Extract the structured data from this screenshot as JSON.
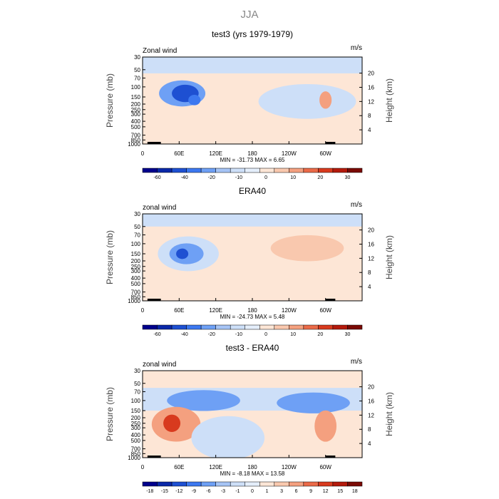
{
  "page_title": "JJA",
  "chart_data": [
    {
      "type": "heatmap",
      "title": "test3 (yrs 1979-1979)",
      "field_label": "Zonal wind",
      "unit_label": "m/s",
      "ylabel": "Pressure (mb)",
      "y2label": "Height (km)",
      "x_ticks": [
        "0",
        "60E",
        "120E",
        "180",
        "120W",
        "60W"
      ],
      "y_ticks": [
        "30",
        "50",
        "70",
        "100",
        "150",
        "200",
        "250",
        "300",
        "400",
        "500",
        "700",
        "850",
        "1000"
      ],
      "y2_ticks": [
        "20",
        "16",
        "12",
        "8",
        "4"
      ],
      "stats_text": "MIN = -31.73  MAX =   6.65",
      "min": -31.73,
      "max": 6.65,
      "colorbar_labels": [
        "-60",
        "-40",
        "-20",
        "-10",
        "0",
        "10",
        "20",
        "30"
      ],
      "colorbar_colors": [
        "#00008c",
        "#0a28a8",
        "#1e50d2",
        "#3c78f0",
        "#6ea0f5",
        "#a6c4f5",
        "#cddff8",
        "#e4eefb",
        "#fde6d6",
        "#f9c8ae",
        "#f4a07f",
        "#ea6a48",
        "#d83a1e",
        "#b41a0c",
        "#7a0a04"
      ],
      "background_color": "#fde6d6",
      "features": [
        {
          "kind": "band",
          "lon_range": [
            0,
            360
          ],
          "p_range": [
            30,
            58
          ],
          "level": "light-blue"
        },
        {
          "kind": "blob",
          "lon": 65,
          "p": 130,
          "rx": 38,
          "rp": 0.15,
          "level": "mid-blue"
        },
        {
          "kind": "blob",
          "lon": 70,
          "p": 130,
          "rx": 22,
          "rp": 0.1,
          "level": "deep-blue"
        },
        {
          "kind": "blob",
          "lon": 85,
          "p": 170,
          "rx": 10,
          "rp": 0.06,
          "level": "strong-blue"
        },
        {
          "kind": "blob",
          "lon": 270,
          "p": 180,
          "rx": 80,
          "rp": 0.2,
          "level": "light-blue"
        },
        {
          "kind": "blob",
          "lon": 300,
          "p": 170,
          "rx": 10,
          "rp": 0.1,
          "level": "orange"
        }
      ]
    },
    {
      "type": "heatmap",
      "title": "ERA40",
      "field_label": "zonal wind",
      "unit_label": "m/s",
      "ylabel": "Pressure (mb)",
      "y2label": "Height (km)",
      "x_ticks": [
        "0",
        "60E",
        "120E",
        "180",
        "120W",
        "60W"
      ],
      "y_ticks": [
        "30",
        "50",
        "70",
        "100",
        "150",
        "200",
        "250",
        "300",
        "400",
        "500",
        "700",
        "850",
        "1000"
      ],
      "y2_ticks": [
        "20",
        "16",
        "12",
        "8",
        "4"
      ],
      "stats_text": "MIN = -24.73  MAX =   5.48",
      "min": -24.73,
      "max": 5.48,
      "colorbar_labels": [
        "-60",
        "-40",
        "-20",
        "-10",
        "0",
        "10",
        "20",
        "30"
      ],
      "colorbar_colors": [
        "#00008c",
        "#0a28a8",
        "#1e50d2",
        "#3c78f0",
        "#6ea0f5",
        "#a6c4f5",
        "#cddff8",
        "#e4eefb",
        "#fde6d6",
        "#f9c8ae",
        "#f4a07f",
        "#ea6a48",
        "#d83a1e",
        "#b41a0c",
        "#7a0a04"
      ],
      "background_color": "#fde6d6",
      "features": [
        {
          "kind": "band",
          "lon_range": [
            0,
            360
          ],
          "p_range": [
            30,
            50
          ],
          "level": "light-blue"
        },
        {
          "kind": "blob",
          "lon": 75,
          "p": 150,
          "rx": 50,
          "rp": 0.2,
          "level": "light-blue"
        },
        {
          "kind": "blob",
          "lon": 72,
          "p": 150,
          "rx": 28,
          "rp": 0.12,
          "level": "mid-blue"
        },
        {
          "kind": "blob",
          "lon": 65,
          "p": 150,
          "rx": 10,
          "rp": 0.06,
          "level": "deep-blue"
        },
        {
          "kind": "blob",
          "lon": 270,
          "p": 120,
          "rx": 60,
          "rp": 0.15,
          "level": "light-orange"
        }
      ]
    },
    {
      "type": "heatmap",
      "title": "test3 - ERA40",
      "field_label": "zonal wind",
      "unit_label": "m/s",
      "ylabel": "Pressure (mb)",
      "y2label": "Height (km)",
      "x_ticks": [
        "0",
        "60E",
        "120E",
        "180",
        "120W",
        "60W"
      ],
      "y_ticks": [
        "30",
        "50",
        "70",
        "100",
        "150",
        "200",
        "250",
        "300",
        "400",
        "500",
        "700",
        "850",
        "1000"
      ],
      "y2_ticks": [
        "20",
        "16",
        "12",
        "8",
        "4"
      ],
      "stats_text": "MIN = -8.18  MAX = 13.58",
      "min": -8.18,
      "max": 13.58,
      "colorbar_labels": [
        "-18",
        "-15",
        "-12",
        "-9",
        "-6",
        "-3",
        "-1",
        "0",
        "1",
        "3",
        "6",
        "9",
        "12",
        "15",
        "18"
      ],
      "colorbar_colors": [
        "#00008c",
        "#0a28a8",
        "#1e50d2",
        "#3c78f0",
        "#6ea0f5",
        "#a6c4f5",
        "#cddff8",
        "#e4eefb",
        "#fde6d6",
        "#f9c8ae",
        "#f4a07f",
        "#ea6a48",
        "#d83a1e",
        "#b41a0c",
        "#7a0a04"
      ],
      "background_color": "#fde6d6",
      "features": [
        {
          "kind": "band",
          "lon_range": [
            0,
            360
          ],
          "p_range": [
            60,
            150
          ],
          "level": "light-blue"
        },
        {
          "kind": "blob",
          "lon": 100,
          "p": 100,
          "rx": 60,
          "rp": 0.12,
          "level": "mid-blue"
        },
        {
          "kind": "blob",
          "lon": 280,
          "p": 110,
          "rx": 60,
          "rp": 0.12,
          "level": "mid-blue"
        },
        {
          "kind": "blob",
          "lon": 55,
          "p": 260,
          "rx": 40,
          "rp": 0.2,
          "level": "orange"
        },
        {
          "kind": "blob",
          "lon": 48,
          "p": 250,
          "rx": 14,
          "rp": 0.1,
          "level": "red"
        },
        {
          "kind": "blob",
          "lon": 300,
          "p": 280,
          "rx": 18,
          "rp": 0.18,
          "level": "orange"
        },
        {
          "kind": "blob",
          "lon": 140,
          "p": 450,
          "rx": 60,
          "rp": 0.25,
          "level": "light-blue"
        }
      ]
    }
  ]
}
